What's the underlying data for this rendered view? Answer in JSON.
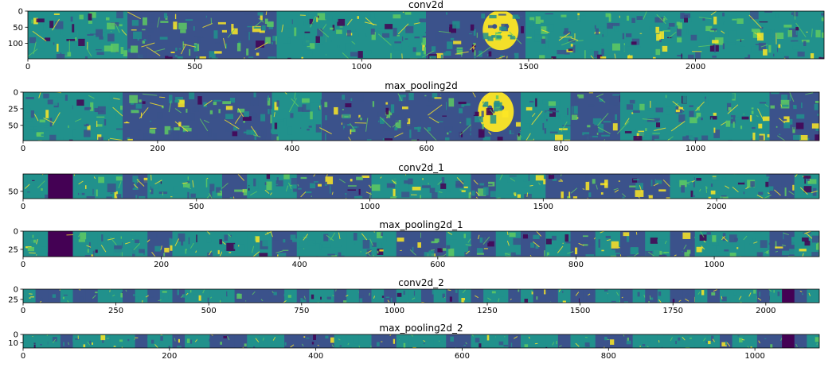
{
  "figure": {
    "background": "#ffffff",
    "colormap": [
      "#440154",
      "#3b528b",
      "#21918c",
      "#5ec962",
      "#fde725"
    ]
  },
  "chart_data": [
    {
      "type": "heatmap",
      "title": "conv2d",
      "xlim": [
        0,
        2385
      ],
      "ylim": [
        148,
        0
      ],
      "xticks": [
        0,
        500,
        1000,
        1500,
        2000
      ],
      "yticks": [
        0,
        50,
        100
      ],
      "panels": 16,
      "dark_panels": [],
      "bright_panels": [
        9
      ],
      "cmap": "viridis"
    },
    {
      "type": "heatmap",
      "title": "max_pooling2d",
      "xlim": [
        0,
        1184
      ],
      "ylim": [
        73,
        0
      ],
      "xticks": [
        0,
        200,
        400,
        600,
        800,
        1000
      ],
      "yticks": [
        0,
        25,
        50
      ],
      "panels": 16,
      "dark_panels": [],
      "bright_panels": [
        9
      ],
      "cmap": "viridis"
    },
    {
      "type": "heatmap",
      "title": "conv2d_1",
      "xlim": [
        0,
        2296
      ],
      "ylim": [
        71,
        0
      ],
      "xticks": [
        0,
        500,
        1000,
        1500,
        2000
      ],
      "yticks": [
        50
      ],
      "panels": 32,
      "dark_panels": [
        1
      ],
      "bright_panels": [],
      "cmap": "viridis"
    },
    {
      "type": "heatmap",
      "title": "max_pooling2d_1",
      "xlim": [
        0,
        1152
      ],
      "ylim": [
        35,
        0
      ],
      "xticks": [
        0,
        200,
        400,
        600,
        800,
        1000
      ],
      "yticks": [
        0,
        25
      ],
      "panels": 32,
      "dark_panels": [
        1
      ],
      "bright_panels": [],
      "cmap": "viridis"
    },
    {
      "type": "heatmap",
      "title": "conv2d_2",
      "xlim": [
        0,
        2144
      ],
      "ylim": [
        33,
        0
      ],
      "xticks": [
        0,
        250,
        500,
        750,
        1000,
        1250,
        1500,
        1750,
        2000
      ],
      "yticks": [
        0,
        25
      ],
      "panels": 64,
      "dark_panels": [
        61
      ],
      "bright_panels": [],
      "cmap": "viridis"
    },
    {
      "type": "heatmap",
      "title": "max_pooling2d_2",
      "xlim": [
        0,
        1088
      ],
      "ylim": [
        16,
        0
      ],
      "xticks": [
        0,
        200,
        400,
        600,
        800,
        1000
      ],
      "yticks": [
        0,
        10
      ],
      "panels": 64,
      "dark_panels": [
        61
      ],
      "bright_panels": [],
      "cmap": "viridis"
    }
  ]
}
